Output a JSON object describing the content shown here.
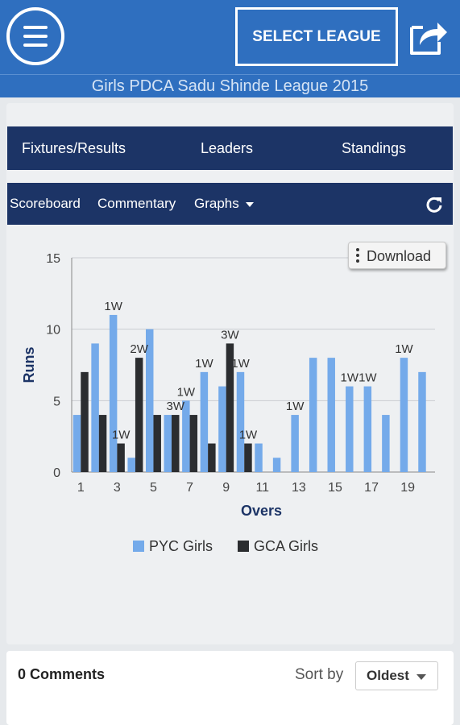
{
  "header": {
    "select_league_label": "SELECT LEAGUE",
    "menu_icon": "hamburger-menu-icon",
    "share_icon": "share-icon"
  },
  "subtitle": "Girls PDCA Sadu Shinde League 2015",
  "tabs": [
    {
      "label": "Fixtures/Results"
    },
    {
      "label": "Leaders"
    },
    {
      "label": "Standings"
    }
  ],
  "subtabs": [
    {
      "label": "Scoreboard"
    },
    {
      "label": "Commentary"
    },
    {
      "label": "Graphs"
    }
  ],
  "download_label": "Download",
  "colors": {
    "header_blue": "#2f6fbf",
    "nav_navy": "#1c3466",
    "series_a": "#74aaea",
    "series_b": "#2b2d30"
  },
  "chart_data": {
    "type": "bar",
    "xlabel": "Overs",
    "ylabel": "Runs",
    "ylim": [
      0,
      15
    ],
    "y_ticks": [
      0,
      5,
      10,
      15
    ],
    "x_tick_labels": [
      "1",
      "3",
      "5",
      "7",
      "9",
      "11",
      "13",
      "15",
      "17",
      "19"
    ],
    "categories": [
      1,
      2,
      3,
      4,
      5,
      6,
      7,
      8,
      9,
      10,
      11,
      12,
      13,
      14,
      15,
      16,
      17,
      18,
      19,
      20
    ],
    "series": [
      {
        "name": "PYC Girls",
        "color": "#74aaea",
        "values": [
          4,
          9,
          11,
          1,
          10,
          4,
          5,
          7,
          6,
          7,
          2,
          1,
          4,
          8,
          8,
          6,
          6,
          4,
          8,
          7
        ]
      },
      {
        "name": "GCA Girls",
        "color": "#2b2d30",
        "values": [
          7,
          4,
          2,
          8,
          4,
          4,
          4,
          2,
          9,
          2,
          null,
          null,
          null,
          null,
          null,
          null,
          null,
          null,
          null,
          null
        ]
      }
    ],
    "annotations": [
      {
        "over": 3,
        "series": 0,
        "text": "1W"
      },
      {
        "over": 3,
        "series": 1,
        "text": "1W"
      },
      {
        "over": 4,
        "series": 1,
        "text": "2W"
      },
      {
        "over": 6,
        "series": 1,
        "text": "3W"
      },
      {
        "over": 7,
        "series": 0,
        "text": "1W"
      },
      {
        "over": 8,
        "series": 0,
        "text": "1W"
      },
      {
        "over": 9,
        "series": 1,
        "text": "3W"
      },
      {
        "over": 10,
        "series": 0,
        "text": "1W"
      },
      {
        "over": 10,
        "series": 1,
        "text": "1W"
      },
      {
        "over": 13,
        "series": 0,
        "text": "1W"
      },
      {
        "over": 16,
        "series": 0,
        "text": "1W"
      },
      {
        "over": 17,
        "series": 0,
        "text": "1W"
      },
      {
        "over": 19,
        "series": 0,
        "text": "1W"
      }
    ],
    "legend": "bottom-center",
    "grid": true
  },
  "comments": {
    "count_label": "0 Comments",
    "sort_label": "Sort by",
    "sort_value": "Oldest"
  }
}
